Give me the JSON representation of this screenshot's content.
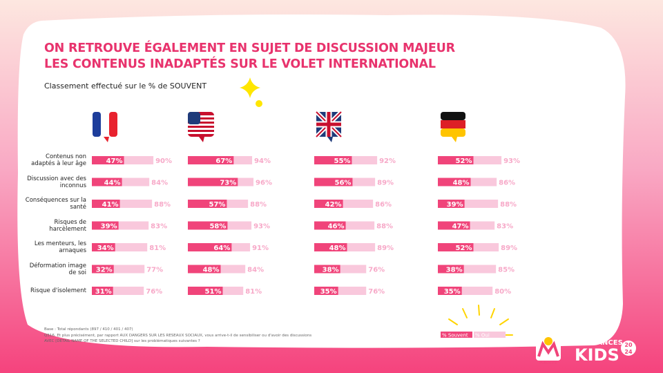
{
  "chart_data": {
    "type": "bar",
    "title": [
      "ON RETROUVE ÉGALEMENT EN SUJET DE DISCUSSION MAJEUR",
      "LES CONTENUS INADAPTÉS SUR LE VOLET INTERNATIONAL"
    ],
    "subtitle": "Classement effectué sur le % de SOUVENT",
    "categories": [
      "Contenus non adaptés à leur âge",
      "Discussion avec des inconnus",
      "Conséquences sur la santé",
      "Risques de harcèlement",
      "Les menteurs, les arnaques",
      "Déformation image de soi",
      "Risque d'isolement"
    ],
    "series": [
      {
        "name": "% Souvent",
        "color": "#f0447a"
      },
      {
        "name": "% Oui",
        "color": "#f9c8dc"
      }
    ],
    "xlim": [
      0,
      100
    ],
    "panels": [
      {
        "series": [
          {
            "values": [
              47,
              44,
              41,
              39,
              34,
              32,
              31
            ],
            "value_labels": [
              "47%",
              "44%",
              "41%",
              "39%",
              "34%",
              "32%",
              "31%"
            ]
          },
          {
            "values": [
              90,
              84,
              88,
              83,
              81,
              77,
              76
            ],
            "value_labels": [
              "90%",
              "84%",
              "88%",
              "83%",
              "81%",
              "77%",
              "76%"
            ]
          }
        ]
      },
      {
        "series": [
          {
            "values": [
              67,
              73,
              57,
              58,
              64,
              48,
              51
            ],
            "value_labels": [
              "67%",
              "73%",
              "57%",
              "58%",
              "64%",
              "48%",
              "51%"
            ]
          },
          {
            "values": [
              94,
              96,
              88,
              93,
              91,
              84,
              81
            ],
            "value_labels": [
              "94%",
              "96%",
              "88%",
              "93%",
              "91%",
              "84%",
              "81%"
            ]
          }
        ]
      },
      {
        "series": [
          {
            "values": [
              55,
              56,
              42,
              46,
              48,
              38,
              35
            ],
            "value_labels": [
              "55%",
              "56%",
              "42%",
              "46%",
              "48%",
              "38%",
              "35%"
            ]
          },
          {
            "values": [
              92,
              89,
              86,
              88,
              89,
              76,
              76
            ],
            "value_labels": [
              "92%",
              "89%",
              "86%",
              "88%",
              "89%",
              "76%",
              "76%"
            ]
          }
        ]
      },
      {
        "series": [
          {
            "values": [
              52,
              48,
              39,
              47,
              52,
              38,
              35
            ],
            "value_labels": [
              "52%",
              "48%",
              "39%",
              "47%",
              "52%",
              "38%",
              "35%"
            ]
          },
          {
            "values": [
              93,
              86,
              88,
              83,
              89,
              85,
              80
            ],
            "value_labels": [
              "93%",
              "86%",
              "88%",
              "83%",
              "89%",
              "85%",
              "80%"
            ]
          }
        ]
      }
    ]
  },
  "footnote": [
    "Base : Total répondants (897 / 410 / 401 / 407)",
    "Q516. Et plus précisément, par rapport AUX DANGERS SUR LES RESEAUX SOCIAUX, vous arrive-t-il de sensibiliser ou d'avoir des discussions",
    "AVEC [DETAIL NAME OF THE SELECTED CHILD] sur les problématiques suivantes ?"
  ],
  "logos": {
    "m6": "PUBLICITÉ",
    "brand_top": "TENDANCES",
    "brand_main": "KIDS",
    "year_top": "20",
    "year_bottom": "24"
  }
}
